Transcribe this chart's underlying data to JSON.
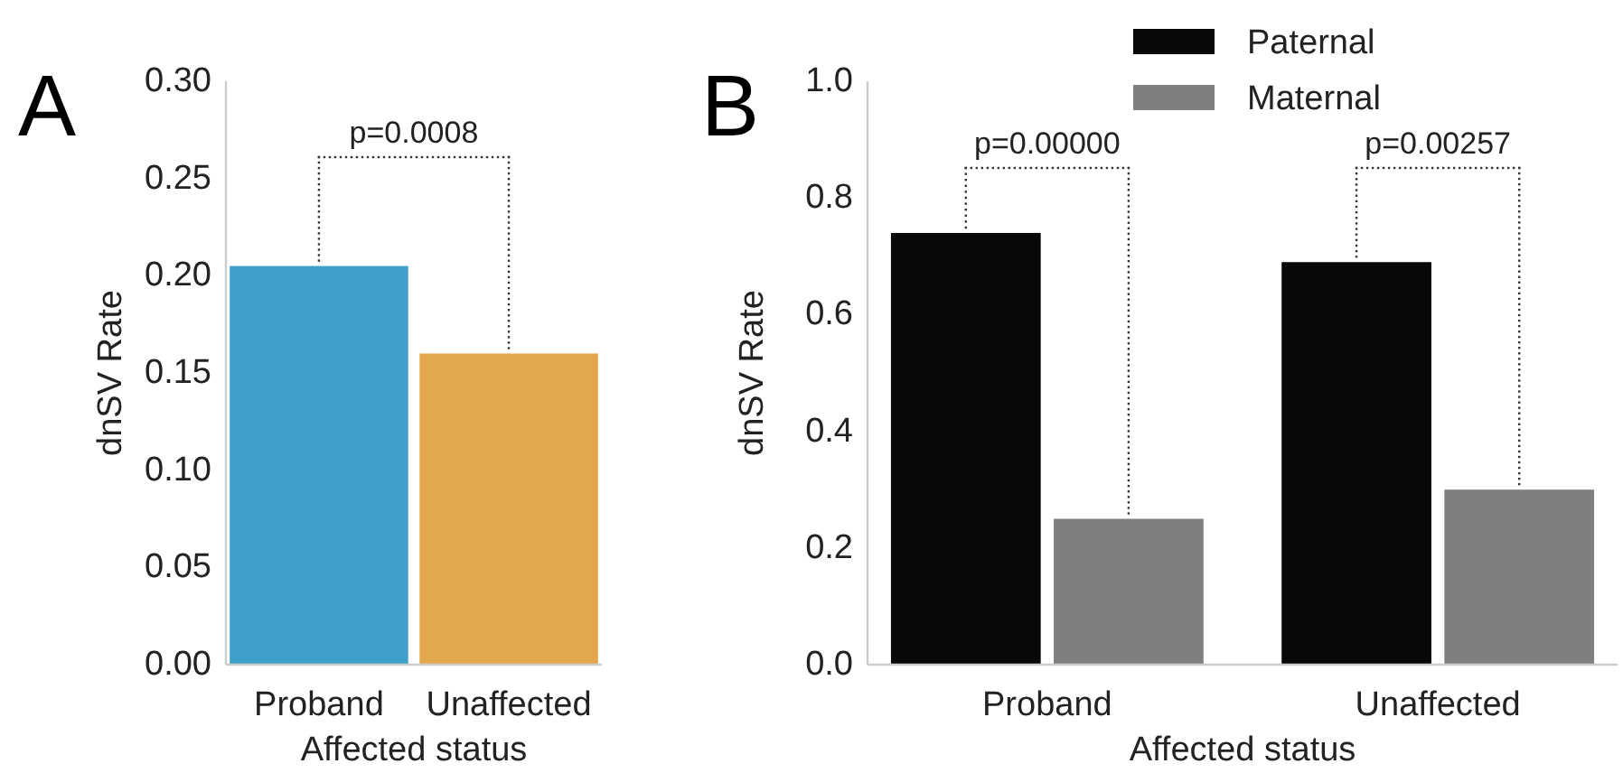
{
  "chart_data": [
    {
      "type": "bar",
      "title": "A",
      "categories": [
        "Proband",
        "Unaffected"
      ],
      "values": [
        0.205,
        0.16
      ],
      "colors": [
        "#3fa0cc",
        "#e3a74e"
      ],
      "ylim": [
        0,
        0.3
      ],
      "yticks": [
        {
          "value": 0,
          "label": "0.00"
        },
        {
          "value": 0.05,
          "label": "0.05"
        },
        {
          "value": 0.1,
          "label": "0.10"
        },
        {
          "value": 0.15,
          "label": "0.15"
        },
        {
          "value": 0.2,
          "label": "0.20"
        },
        {
          "value": 0.25,
          "label": "0.25"
        },
        {
          "value": 0.3,
          "label": "0.30"
        }
      ],
      "xlabel": "Affected status",
      "ylabel": "dnSV Rate",
      "annotations": [
        "p=0.0008"
      ],
      "grid": false,
      "legend": false
    },
    {
      "type": "bar",
      "title": "B",
      "categories": [
        "Proband",
        "Unaffected"
      ],
      "series": [
        {
          "name": "Paternal",
          "color": "#070809",
          "values": [
            0.74,
            0.69
          ]
        },
        {
          "name": "Maternal",
          "color": "#7f7f7f",
          "values": [
            0.25,
            0.3
          ]
        }
      ],
      "ylim": [
        0,
        1
      ],
      "yticks": [
        {
          "value": 0,
          "label": "0.0"
        },
        {
          "value": 0.2,
          "label": "0.2"
        },
        {
          "value": 0.4,
          "label": "0.4"
        },
        {
          "value": 0.6,
          "label": "0.6"
        },
        {
          "value": 0.8,
          "label": "0.8"
        },
        {
          "value": 1,
          "label": "1.0"
        }
      ],
      "xlabel": "Affected status",
      "ylabel": "dnSV Rate",
      "annotations": [
        "p=0.00000",
        "p=0.00257"
      ],
      "grid": false,
      "legend": "top"
    }
  ]
}
